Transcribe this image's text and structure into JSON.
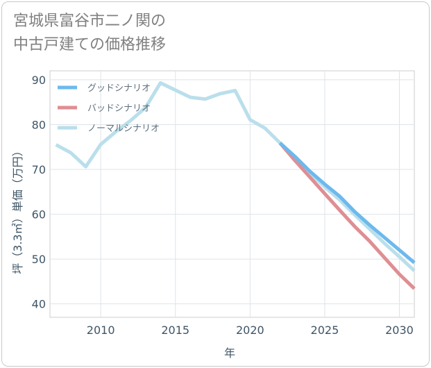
{
  "header": {
    "title_line1": "宮城県富谷市二ノ関の",
    "title_line2": "中古戸建ての価格推移"
  },
  "chart_data": {
    "type": "line",
    "title": "宮城県富谷市二ノ関の中古戸建ての価格推移",
    "xlabel": "年",
    "ylabel": "坪（3.3㎡）単価（万円）",
    "xlim": [
      2006.6,
      2031
    ],
    "ylim": [
      37,
      92
    ],
    "xticks": [
      2010,
      2015,
      2020,
      2025,
      2030
    ],
    "yticks": [
      40,
      50,
      60,
      70,
      80,
      90
    ],
    "grid": true,
    "legend_position": "top-left",
    "series": [
      {
        "name": "グッドシナリオ",
        "color": "#6cb9ee",
        "x": [
          2022,
          2023,
          2024,
          2025,
          2026,
          2027,
          2028,
          2029,
          2030,
          2031
        ],
        "values": [
          75.9,
          72.9,
          69.6,
          66.7,
          64.0,
          60.6,
          57.6,
          54.8,
          52.0,
          49.2
        ]
      },
      {
        "name": "バッドシナリオ",
        "color": "#df8e93",
        "x": [
          2022,
          2023,
          2024,
          2025,
          2026,
          2027,
          2028,
          2029,
          2030,
          2031
        ],
        "values": [
          75.9,
          72.0,
          68.3,
          64.6,
          60.9,
          57.3,
          54.0,
          50.3,
          46.6,
          43.4
        ]
      },
      {
        "name": "ノーマルシナリオ",
        "color": "#badfeb",
        "x": [
          2007,
          2008,
          2009,
          2010,
          2011,
          2012,
          2013,
          2014,
          2015,
          2016,
          2017,
          2018,
          2019,
          2020,
          2021,
          2022,
          2023,
          2024,
          2025,
          2026,
          2027,
          2028,
          2029,
          2030,
          2031
        ],
        "values": [
          75.5,
          73.7,
          70.6,
          75.6,
          78.4,
          80.9,
          83.8,
          89.3,
          87.7,
          86.1,
          85.7,
          86.9,
          87.6,
          81.1,
          79.2,
          75.9,
          72.5,
          69.2,
          66.1,
          63.2,
          59.9,
          56.7,
          53.5,
          50.5,
          47.4
        ]
      }
    ]
  }
}
